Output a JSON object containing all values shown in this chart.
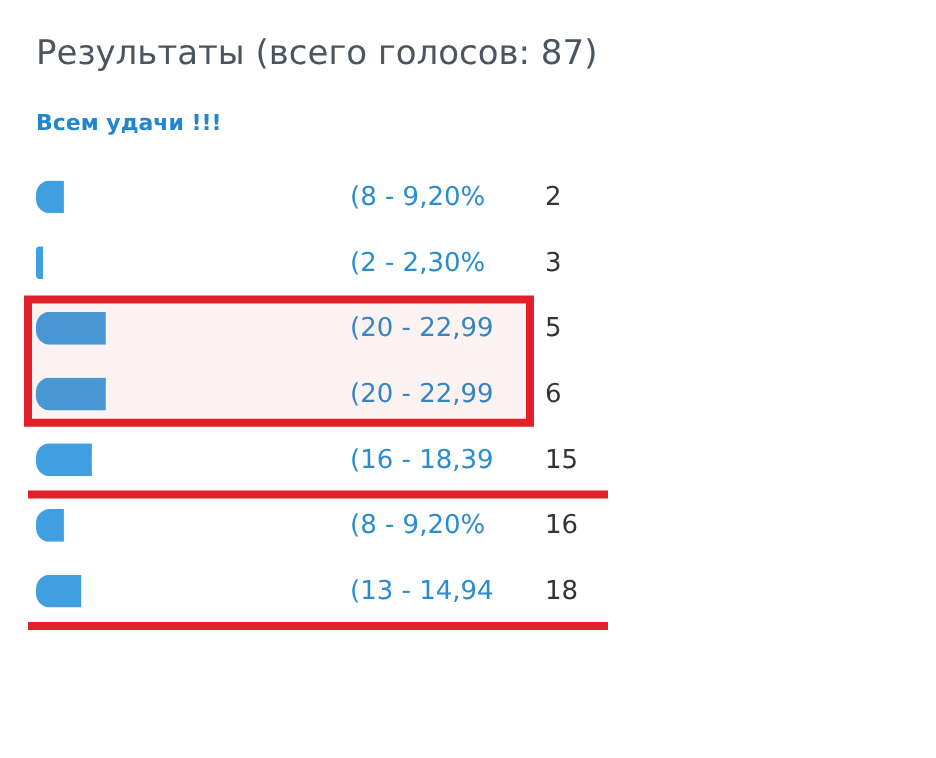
{
  "chart_data": {
    "type": "bar",
    "orientation": "horizontal",
    "title": "Результаты (всего голосов: 87)",
    "subtitle": "Всем удачи !!!",
    "categories": [
      "2",
      "3",
      "5",
      "6",
      "15",
      "16",
      "18"
    ],
    "values": [
      8,
      2,
      20,
      20,
      16,
      8,
      13
    ],
    "value_labels": [
      "(8 - 9,20%",
      "(2 - 2,30%",
      "(20 - 22,99",
      "(20 - 22,99",
      "(16 - 18,39",
      "(8 - 9,20%",
      "(13 - 14,94"
    ],
    "color": "#3f9fe0",
    "bands": [
      {
        "axis": "y",
        "from": "5",
        "to": "6",
        "color": "#e3202a"
      }
    ],
    "ref_lines": [
      {
        "axis": "y",
        "value": "15",
        "color": "#e3202a"
      },
      {
        "axis": "y",
        "value": "18",
        "color": "#e3202a"
      }
    ]
  }
}
